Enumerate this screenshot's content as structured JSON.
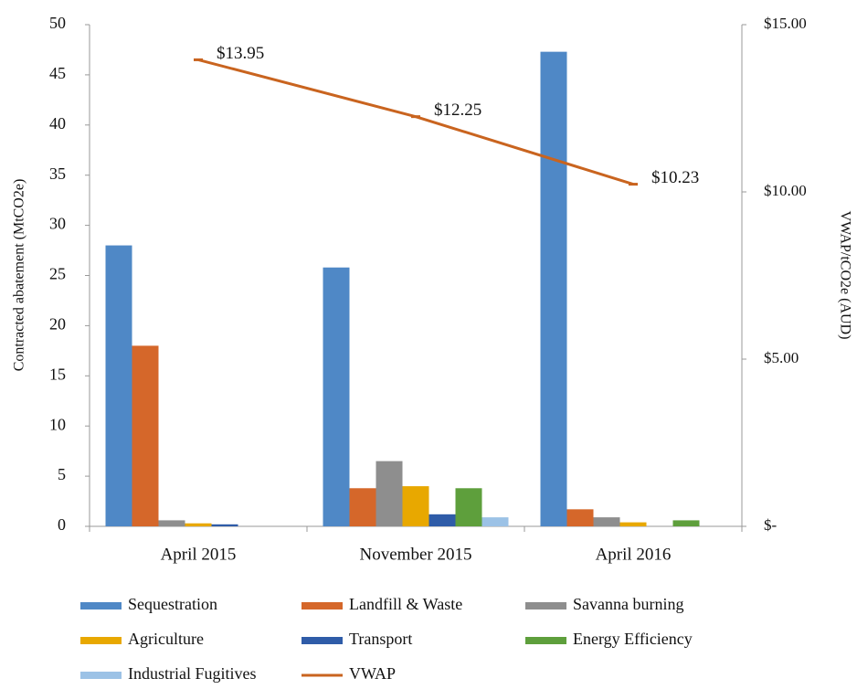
{
  "chart_data": {
    "type": "bar",
    "categories": [
      "April 2015",
      "November 2015",
      "April 2016"
    ],
    "ylabel": "Contracted abatement (MtCO2e)",
    "y2label": "VWAP/tCO2e (AUD)",
    "ylim": [
      0,
      50
    ],
    "yticks": [
      0,
      5,
      10,
      15,
      20,
      25,
      30,
      35,
      40,
      45,
      50
    ],
    "y2lim": [
      0,
      15
    ],
    "y2ticks": [
      {
        "value": 0,
        "label": "$-"
      },
      {
        "value": 5,
        "label": "$5.00"
      },
      {
        "value": 10,
        "label": "$10.00"
      },
      {
        "value": 15,
        "label": "$15.00"
      }
    ],
    "legend": "bottom",
    "series": [
      {
        "name": "Sequestration",
        "color": "#4f88c6",
        "values": [
          28,
          25.8,
          47.3
        ]
      },
      {
        "name": "Landfill & Waste",
        "color": "#d5672a",
        "values": [
          18,
          3.8,
          1.7
        ]
      },
      {
        "name": "Savanna burning",
        "color": "#8e8e8e",
        "values": [
          0.6,
          6.5,
          0.9
        ]
      },
      {
        "name": "Agriculture",
        "color": "#e8a800",
        "values": [
          0.3,
          4,
          0.4
        ]
      },
      {
        "name": "Transport",
        "color": "#2f5ca8",
        "values": [
          0.2,
          1.2,
          0
        ]
      },
      {
        "name": "Energy Efficiency",
        "color": "#5e9f3c",
        "values": [
          0,
          3.8,
          0.6
        ]
      },
      {
        "name": "Industrial Fugitives",
        "color": "#9cc2e6",
        "values": [
          0,
          0.9,
          0
        ]
      },
      {
        "name": "VWAP",
        "type": "line",
        "axis": "y2",
        "color": "#c9641f",
        "values": [
          13.95,
          12.25,
          10.23
        ],
        "value_labels": [
          "$13.95",
          "$12.25",
          "$10.23"
        ]
      }
    ]
  }
}
